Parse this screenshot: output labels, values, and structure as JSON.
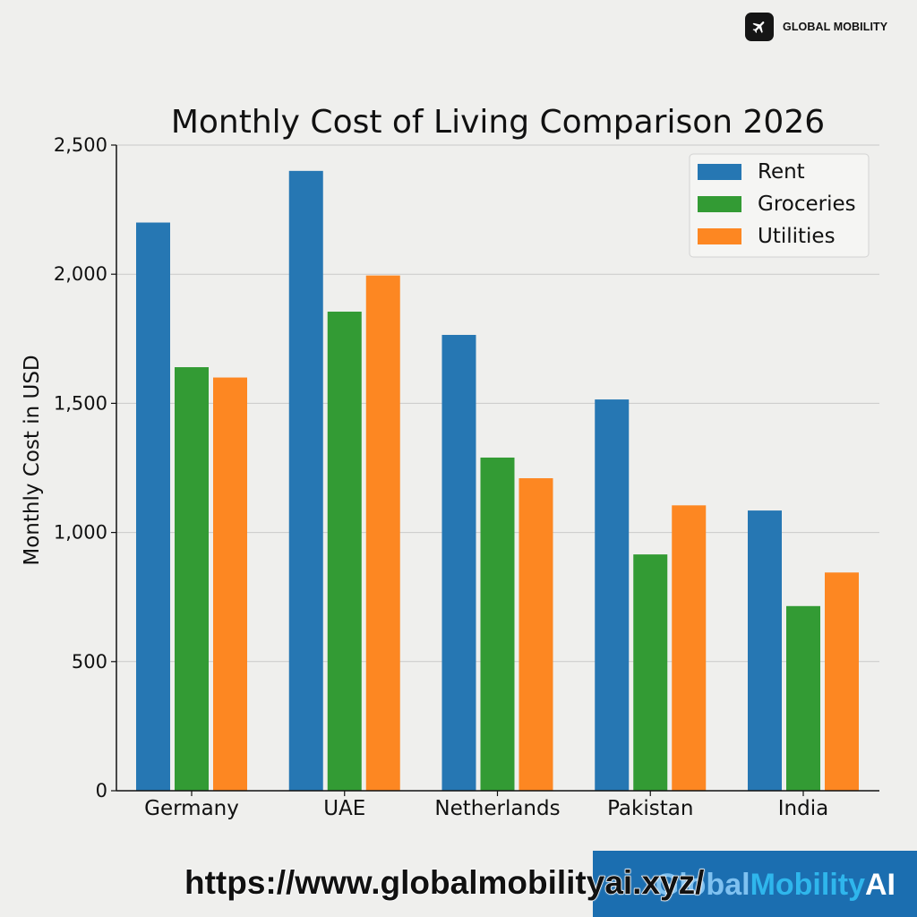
{
  "brand": {
    "name": "GLOBAL MOBILITY",
    "icon": "airplane-icon"
  },
  "footer": {
    "url": "https://www.globalmobilityai.xyz/",
    "banner_part1": "Global",
    "banner_part2": "Mobility",
    "banner_part3": "AI"
  },
  "colors": {
    "background": "#efefed",
    "rent": "#2677b3",
    "groceries": "#339b34",
    "utilities": "#fd8722",
    "banner": "#1b6eb0"
  },
  "chart_data": {
    "type": "bar",
    "title": "Monthly Cost of Living Comparison 2026",
    "xlabel": "",
    "ylabel": "Monthly Cost in USD",
    "ylim": [
      0,
      2500
    ],
    "yticks": [
      0,
      500,
      1000,
      1500,
      2000,
      2500
    ],
    "ytick_labels": [
      "0",
      "500",
      "1,000",
      "1,500",
      "2,000",
      "2,500"
    ],
    "grid": true,
    "legend_position": "top-right",
    "categories": [
      "Germany",
      "UAE",
      "Netherlands",
      "Pakistan",
      "India"
    ],
    "series": [
      {
        "name": "Rent",
        "color": "#2677b3",
        "values": [
          2200,
          2400,
          1765,
          1515,
          1085
        ]
      },
      {
        "name": "Groceries",
        "color": "#339b34",
        "values": [
          1640,
          1855,
          1290,
          915,
          715
        ]
      },
      {
        "name": "Utilities",
        "color": "#fd8722",
        "values": [
          1600,
          1995,
          1210,
          1105,
          845
        ]
      }
    ]
  }
}
